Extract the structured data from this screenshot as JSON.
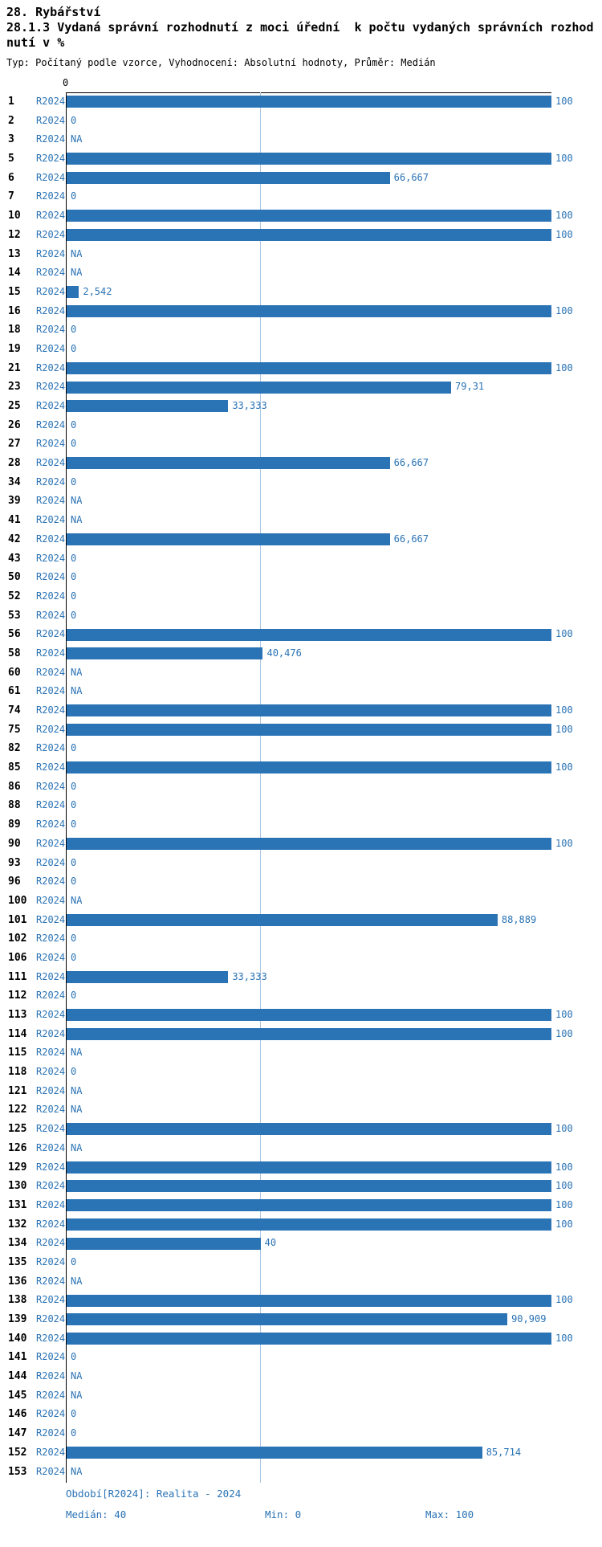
{
  "header": {
    "title": "28. Rybářství",
    "subtitle": "28.1.3 Vydaná správní rozhodnutí z moci úřední  k počtu vydaných správních rozhodnutí v %",
    "meta": "Typ: Počítaný podle vzorce, Vyhodnocení: Absolutní hodnoty, Průměr: Medián"
  },
  "chart_data": {
    "type": "bar",
    "orientation": "horizontal",
    "title": "28.1.3 Vydaná správní rozhodnutí z moci úřední  k počtu vydaných správních rozhodnutí v %",
    "xlabel": "",
    "ylabel": "",
    "xlim": [
      0,
      100
    ],
    "x_axis": {
      "min": 0,
      "max": 100,
      "zero_tick": "0"
    },
    "median_line_value": 40,
    "series_label": "R2024",
    "bar_color": "#2a73b5",
    "median_line_color": "#a9c7e4",
    "rows": [
      {
        "id": "1",
        "period": "R2024",
        "value": 100,
        "label": "100"
      },
      {
        "id": "2",
        "period": "R2024",
        "value": 0,
        "label": "0"
      },
      {
        "id": "3",
        "period": "R2024",
        "value": null,
        "label": "NA"
      },
      {
        "id": "5",
        "period": "R2024",
        "value": 100,
        "label": "100"
      },
      {
        "id": "6",
        "period": "R2024",
        "value": 66.667,
        "label": "66,667"
      },
      {
        "id": "7",
        "period": "R2024",
        "value": 0,
        "label": "0"
      },
      {
        "id": "10",
        "period": "R2024",
        "value": 100,
        "label": "100"
      },
      {
        "id": "12",
        "period": "R2024",
        "value": 100,
        "label": "100"
      },
      {
        "id": "13",
        "period": "R2024",
        "value": null,
        "label": "NA"
      },
      {
        "id": "14",
        "period": "R2024",
        "value": null,
        "label": "NA"
      },
      {
        "id": "15",
        "period": "R2024",
        "value": 2.542,
        "label": "2,542"
      },
      {
        "id": "16",
        "period": "R2024",
        "value": 100,
        "label": "100"
      },
      {
        "id": "18",
        "period": "R2024",
        "value": 0,
        "label": "0"
      },
      {
        "id": "19",
        "period": "R2024",
        "value": 0,
        "label": "0"
      },
      {
        "id": "21",
        "period": "R2024",
        "value": 100,
        "label": "100"
      },
      {
        "id": "23",
        "period": "R2024",
        "value": 79.31,
        "label": "79,31"
      },
      {
        "id": "25",
        "period": "R2024",
        "value": 33.333,
        "label": "33,333"
      },
      {
        "id": "26",
        "period": "R2024",
        "value": 0,
        "label": "0"
      },
      {
        "id": "27",
        "period": "R2024",
        "value": 0,
        "label": "0"
      },
      {
        "id": "28",
        "period": "R2024",
        "value": 66.667,
        "label": "66,667"
      },
      {
        "id": "34",
        "period": "R2024",
        "value": 0,
        "label": "0"
      },
      {
        "id": "39",
        "period": "R2024",
        "value": null,
        "label": "NA"
      },
      {
        "id": "41",
        "period": "R2024",
        "value": null,
        "label": "NA"
      },
      {
        "id": "42",
        "period": "R2024",
        "value": 66.667,
        "label": "66,667"
      },
      {
        "id": "43",
        "period": "R2024",
        "value": 0,
        "label": "0"
      },
      {
        "id": "50",
        "period": "R2024",
        "value": 0,
        "label": "0"
      },
      {
        "id": "52",
        "period": "R2024",
        "value": 0,
        "label": "0"
      },
      {
        "id": "53",
        "period": "R2024",
        "value": 0,
        "label": "0"
      },
      {
        "id": "56",
        "period": "R2024",
        "value": 100,
        "label": "100"
      },
      {
        "id": "58",
        "period": "R2024",
        "value": 40.476,
        "label": "40,476"
      },
      {
        "id": "60",
        "period": "R2024",
        "value": null,
        "label": "NA"
      },
      {
        "id": "61",
        "period": "R2024",
        "value": null,
        "label": "NA"
      },
      {
        "id": "74",
        "period": "R2024",
        "value": 100,
        "label": "100"
      },
      {
        "id": "75",
        "period": "R2024",
        "value": 100,
        "label": "100"
      },
      {
        "id": "82",
        "period": "R2024",
        "value": 0,
        "label": "0"
      },
      {
        "id": "85",
        "period": "R2024",
        "value": 100,
        "label": "100"
      },
      {
        "id": "86",
        "period": "R2024",
        "value": 0,
        "label": "0"
      },
      {
        "id": "88",
        "period": "R2024",
        "value": 0,
        "label": "0"
      },
      {
        "id": "89",
        "period": "R2024",
        "value": 0,
        "label": "0"
      },
      {
        "id": "90",
        "period": "R2024",
        "value": 100,
        "label": "100"
      },
      {
        "id": "93",
        "period": "R2024",
        "value": 0,
        "label": "0"
      },
      {
        "id": "96",
        "period": "R2024",
        "value": 0,
        "label": "0"
      },
      {
        "id": "100",
        "period": "R2024",
        "value": null,
        "label": "NA"
      },
      {
        "id": "101",
        "period": "R2024",
        "value": 88.889,
        "label": "88,889"
      },
      {
        "id": "102",
        "period": "R2024",
        "value": 0,
        "label": "0"
      },
      {
        "id": "106",
        "period": "R2024",
        "value": 0,
        "label": "0"
      },
      {
        "id": "111",
        "period": "R2024",
        "value": 33.333,
        "label": "33,333"
      },
      {
        "id": "112",
        "period": "R2024",
        "value": 0,
        "label": "0"
      },
      {
        "id": "113",
        "period": "R2024",
        "value": 100,
        "label": "100"
      },
      {
        "id": "114",
        "period": "R2024",
        "value": 100,
        "label": "100"
      },
      {
        "id": "115",
        "period": "R2024",
        "value": null,
        "label": "NA"
      },
      {
        "id": "118",
        "period": "R2024",
        "value": 0,
        "label": "0"
      },
      {
        "id": "121",
        "period": "R2024",
        "value": null,
        "label": "NA"
      },
      {
        "id": "122",
        "period": "R2024",
        "value": null,
        "label": "NA"
      },
      {
        "id": "125",
        "period": "R2024",
        "value": 100,
        "label": "100"
      },
      {
        "id": "126",
        "period": "R2024",
        "value": null,
        "label": "NA"
      },
      {
        "id": "129",
        "period": "R2024",
        "value": 100,
        "label": "100"
      },
      {
        "id": "130",
        "period": "R2024",
        "value": 100,
        "label": "100"
      },
      {
        "id": "131",
        "period": "R2024",
        "value": 100,
        "label": "100"
      },
      {
        "id": "132",
        "period": "R2024",
        "value": 100,
        "label": "100"
      },
      {
        "id": "134",
        "period": "R2024",
        "value": 40,
        "label": "40"
      },
      {
        "id": "135",
        "period": "R2024",
        "value": 0,
        "label": "0"
      },
      {
        "id": "136",
        "period": "R2024",
        "value": null,
        "label": "NA"
      },
      {
        "id": "138",
        "period": "R2024",
        "value": 100,
        "label": "100"
      },
      {
        "id": "139",
        "period": "R2024",
        "value": 90.909,
        "label": "90,909"
      },
      {
        "id": "140",
        "period": "R2024",
        "value": 100,
        "label": "100"
      },
      {
        "id": "141",
        "period": "R2024",
        "value": 0,
        "label": "0"
      },
      {
        "id": "144",
        "period": "R2024",
        "value": null,
        "label": "NA"
      },
      {
        "id": "145",
        "period": "R2024",
        "value": null,
        "label": "NA"
      },
      {
        "id": "146",
        "period": "R2024",
        "value": 0,
        "label": "0"
      },
      {
        "id": "147",
        "period": "R2024",
        "value": 0,
        "label": "0"
      },
      {
        "id": "152",
        "period": "R2024",
        "value": 85.714,
        "label": "85,714"
      },
      {
        "id": "153",
        "period": "R2024",
        "value": null,
        "label": "NA"
      }
    ],
    "legend_position": "none",
    "grid": false
  },
  "footer": {
    "period": "Období[R2024]: Realita - 2024",
    "median": "Medián: 40",
    "min": "Min: 0",
    "max": "Max: 100"
  }
}
